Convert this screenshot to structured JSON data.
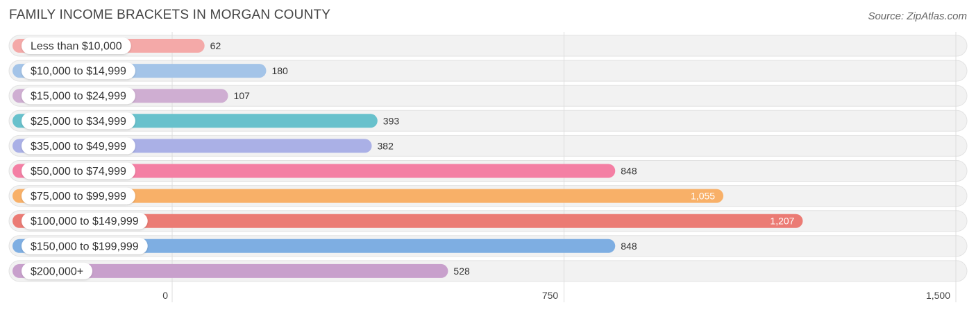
{
  "header": {
    "title": "FAMILY INCOME BRACKETS IN MORGAN COUNTY",
    "source": "Source: ZipAtlas.com"
  },
  "chart_data": {
    "type": "bar",
    "orientation": "horizontal",
    "title": "FAMILY INCOME BRACKETS IN MORGAN COUNTY",
    "xlabel": "",
    "ylabel": "",
    "xlim": [
      0,
      1500
    ],
    "xticks": [
      0,
      750,
      1500
    ],
    "xtick_labels": [
      "0",
      "750",
      "1,500"
    ],
    "grid": true,
    "categories": [
      "Less than $10,000",
      "$10,000 to $14,999",
      "$15,000 to $24,999",
      "$25,000 to $34,999",
      "$35,000 to $49,999",
      "$50,000 to $74,999",
      "$75,000 to $99,999",
      "$100,000 to $149,999",
      "$150,000 to $199,999",
      "$200,000+"
    ],
    "values": [
      62,
      180,
      107,
      393,
      382,
      848,
      1055,
      1207,
      848,
      528
    ],
    "value_labels": [
      "62",
      "180",
      "107",
      "393",
      "382",
      "848",
      "1,055",
      "1,207",
      "848",
      "528"
    ],
    "colors": [
      "#f4a9a8",
      "#a4c4e8",
      "#cfaed2",
      "#68c1cc",
      "#aab0e6",
      "#f47fa4",
      "#f8b068",
      "#eb7b74",
      "#7eaee2",
      "#c8a0cc"
    ]
  }
}
